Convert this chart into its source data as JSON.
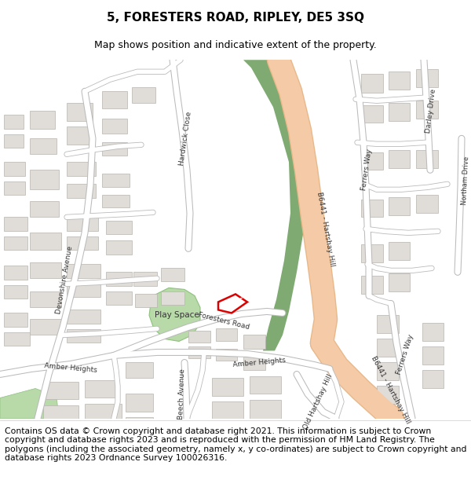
{
  "title": "5, FORESTERS ROAD, RIPLEY, DE5 3SQ",
  "subtitle": "Map shows position and indicative extent of the property.",
  "footer": "Contains OS data © Crown copyright and database right 2021. This information is subject to Crown copyright and database rights 2023 and is reproduced with the permission of HM Land Registry. The polygons (including the associated geometry, namely x, y co-ordinates) are subject to Crown copyright and database rights 2023 Ordnance Survey 100026316.",
  "map_bg": "#f2f1ee",
  "road_major_color": "#f5cba7",
  "road_major_border": "#e8b88a",
  "road_minor_color": "#ffffff",
  "road_minor_border": "#cccccc",
  "building_fill": "#e0dcd8",
  "building_edge": "#b8b4b0",
  "green_dark_color": "#6d9e5e",
  "green_light_color": "#b8d9a8",
  "plot_edge_color": "#dd0000",
  "title_fontsize": 11,
  "subtitle_fontsize": 9,
  "footer_fontsize": 7.8,
  "label_fontsize": 6.5,
  "label_color": "#333333"
}
